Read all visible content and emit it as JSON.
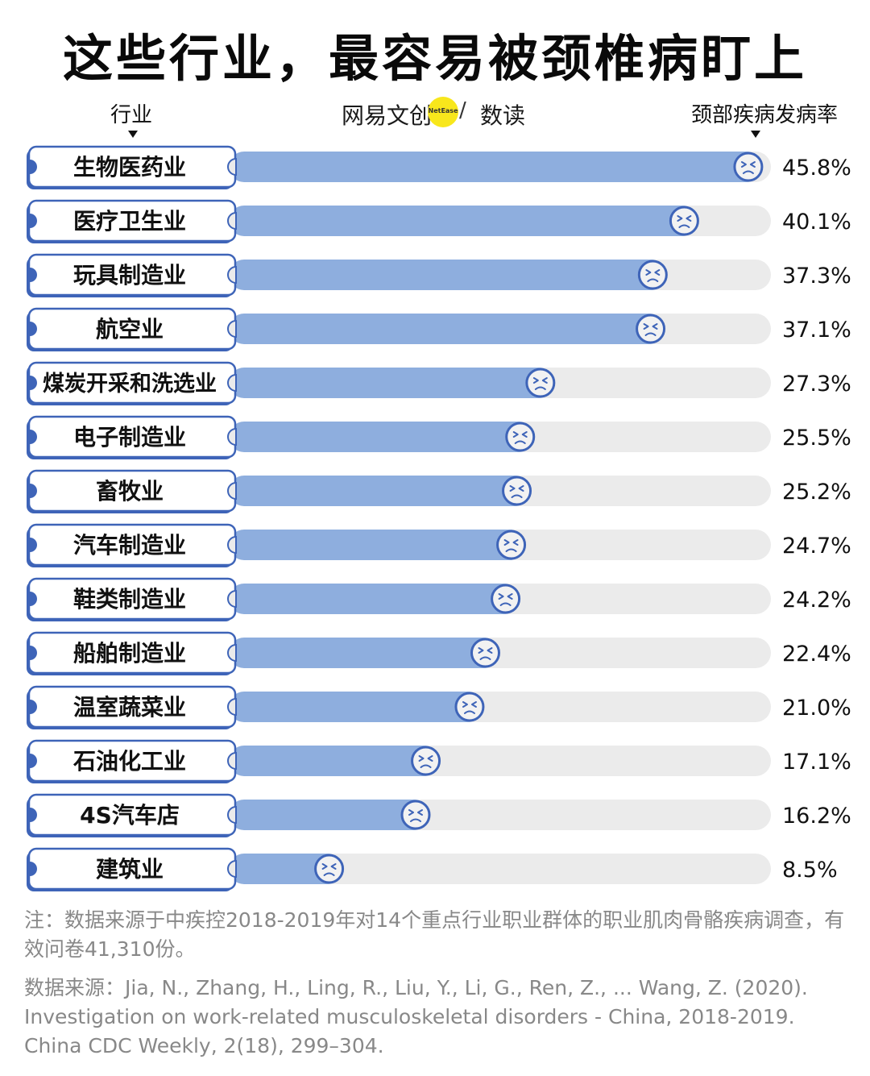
{
  "title": "这些行业，最容易被颈椎病盯上",
  "header": {
    "left_label": "行业",
    "right_label": "颈部疾病发病率",
    "brand_name": "网易文创",
    "brand_badge": "NetEase",
    "brand_slash": "/",
    "brand_sub": "数读"
  },
  "colors": {
    "bar_fill": "#8eaede",
    "track": "#ebebeb",
    "accent": "#3e64b8",
    "face_bg": "#f2f2f2",
    "brand_yellow": "#f8e71c"
  },
  "chart_data": {
    "type": "bar",
    "orientation": "horizontal",
    "title": "这些行业，最容易被颈椎病盯上",
    "xlabel": "颈部疾病发病率",
    "ylabel": "行业",
    "xlim": [
      0,
      46
    ],
    "unit": "%",
    "categories": [
      "生物医药业",
      "医疗卫生业",
      "玩具制造业",
      "航空业",
      "煤炭开采和洗选业",
      "电子制造业",
      "畜牧业",
      "汽车制造业",
      "鞋类制造业",
      "船舶制造业",
      "温室蔬菜业",
      "石油化工业",
      "4S汽车店",
      "建筑业"
    ],
    "values": [
      45.8,
      40.1,
      37.3,
      37.1,
      27.3,
      25.5,
      25.2,
      24.7,
      24.2,
      22.4,
      21.0,
      17.1,
      16.2,
      8.5
    ],
    "value_labels": [
      "45.8%",
      "40.1%",
      "37.3%",
      "37.1%",
      "27.3%",
      "25.5%",
      "25.2%",
      "24.7%",
      "24.2%",
      "22.4%",
      "21.0%",
      "17.1%",
      "16.2%",
      "8.5%"
    ],
    "marker_icon": "sad-face-icon"
  },
  "note": "注：数据来源于中疾控2018-2019年对14个重点行业职业群体的职业肌肉骨骼疾病调查，有效问卷41,310份。",
  "source": "数据来源：Jia, N., Zhang, H., Ling, R., Liu, Y., Li, G., Ren, Z., ... Wang, Z. (2020). Investigation on work-related musculoskeletal disorders - China, 2018-2019. China CDC Weekly, 2(18), 299–304."
}
